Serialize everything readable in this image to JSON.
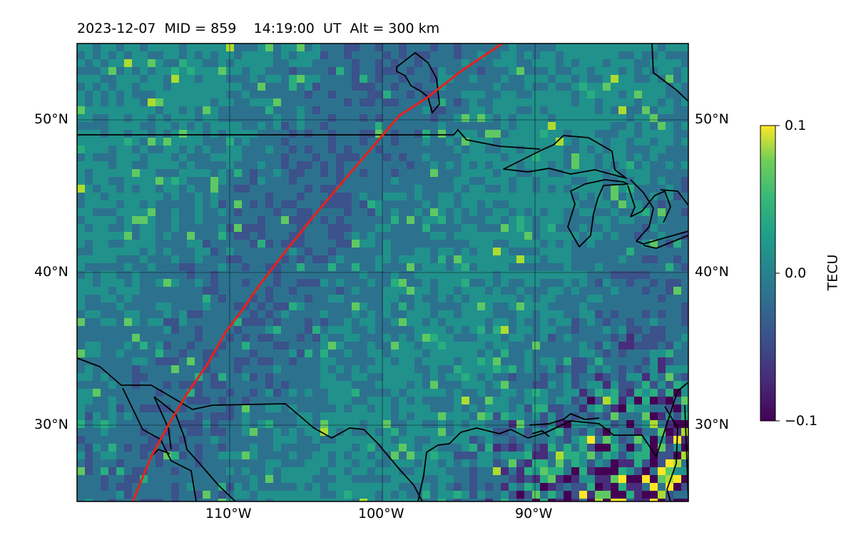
{
  "title": "2023-12-07  MID = 859    14:19:00  UT  Alt = 300 km",
  "map": {
    "lon_range": [
      -120,
      -80
    ],
    "lat_range": [
      25,
      55
    ],
    "lon_ticks": [
      -110,
      -100,
      -90
    ],
    "lat_ticks": [
      30,
      40,
      50
    ],
    "lon_tick_labels": [
      "110°W",
      "100°W",
      "90°W"
    ],
    "lat_tick_labels": [
      "30°N",
      "40°N",
      "50°N"
    ],
    "grid": true,
    "track_color": "#e8211b",
    "field": "TEC perturbation (viridis colormap)"
  },
  "colorbar": {
    "label": "TECU",
    "min": -0.1,
    "max": 0.1,
    "tick_labels": [
      "0.1",
      "0.0",
      "−0.1"
    ]
  }
}
